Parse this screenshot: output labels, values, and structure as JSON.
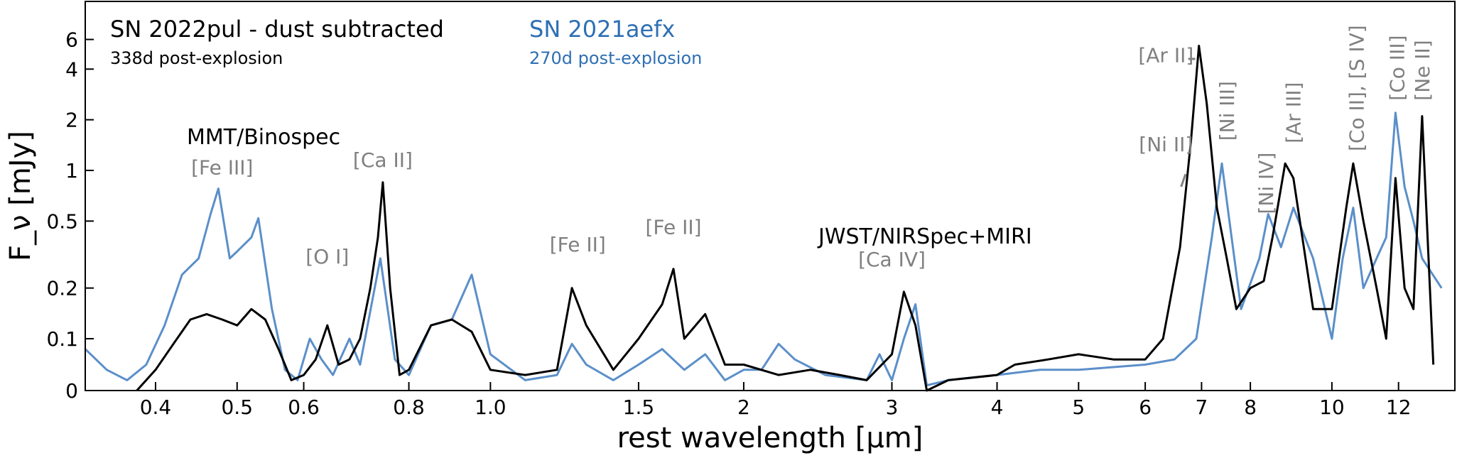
{
  "chart_data": {
    "type": "line",
    "xlabel": "rest wavelength [μm]",
    "ylabel": "F_ν [mJy]",
    "x_scale": "log",
    "xlim": [
      0.33,
      14.0
    ],
    "ylim": [
      0,
      6.3
    ],
    "x_ticks": [
      {
        "value": 0.4,
        "label": "0.4"
      },
      {
        "value": 0.5,
        "label": "0.5"
      },
      {
        "value": 0.6,
        "label": "0.6"
      },
      {
        "value": 0.8,
        "label": "0.8"
      },
      {
        "value": 1.0,
        "label": "1.0"
      },
      {
        "value": 1.5,
        "label": "1.5"
      },
      {
        "value": 2,
        "label": "2"
      },
      {
        "value": 3,
        "label": "3"
      },
      {
        "value": 4,
        "label": "4"
      },
      {
        "value": 5,
        "label": "5"
      },
      {
        "value": 6,
        "label": "6"
      },
      {
        "value": 7,
        "label": "7"
      },
      {
        "value": 8,
        "label": "8"
      },
      {
        "value": 10,
        "label": "10"
      },
      {
        "value": 12,
        "label": "12"
      }
    ],
    "y_ticks": [
      {
        "value": 0,
        "label": "0"
      },
      {
        "value": 0.1,
        "label": "0.1"
      },
      {
        "value": 0.2,
        "label": "0.2"
      },
      {
        "value": 0.5,
        "label": "0.5"
      },
      {
        "value": 1,
        "label": "1"
      },
      {
        "value": 2,
        "label": "2"
      },
      {
        "value": 4,
        "label": "4"
      },
      {
        "value": 6,
        "label": "6"
      }
    ],
    "series": [
      {
        "name": "SN 2022pul - dust subtracted",
        "subtitle": "338d post-explosion",
        "color": "#000000",
        "points": [
          [
            0.38,
            0.0
          ],
          [
            0.4,
            0.04
          ],
          [
            0.42,
            0.09
          ],
          [
            0.44,
            0.13
          ],
          [
            0.46,
            0.14
          ],
          [
            0.48,
            0.13
          ],
          [
            0.5,
            0.12
          ],
          [
            0.52,
            0.15
          ],
          [
            0.54,
            0.13
          ],
          [
            0.56,
            0.08
          ],
          [
            0.58,
            0.02
          ],
          [
            0.6,
            0.03
          ],
          [
            0.62,
            0.06
          ],
          [
            0.64,
            0.12
          ],
          [
            0.66,
            0.05
          ],
          [
            0.68,
            0.06
          ],
          [
            0.7,
            0.1
          ],
          [
            0.72,
            0.2
          ],
          [
            0.735,
            0.4
          ],
          [
            0.745,
            0.85
          ],
          [
            0.76,
            0.2
          ],
          [
            0.78,
            0.03
          ],
          [
            0.8,
            0.04
          ],
          [
            0.85,
            0.12
          ],
          [
            0.9,
            0.13
          ],
          [
            0.95,
            0.11
          ],
          [
            1.0,
            0.04
          ],
          [
            1.1,
            0.03
          ],
          [
            1.2,
            0.04
          ],
          [
            1.25,
            0.2
          ],
          [
            1.3,
            0.12
          ],
          [
            1.4,
            0.04
          ],
          [
            1.5,
            0.1
          ],
          [
            1.6,
            0.16
          ],
          [
            1.65,
            0.26
          ],
          [
            1.7,
            0.1
          ],
          [
            1.8,
            0.14
          ],
          [
            1.9,
            0.05
          ],
          [
            2.0,
            0.05
          ],
          [
            2.2,
            0.03
          ],
          [
            2.4,
            0.04
          ],
          [
            2.6,
            0.03
          ],
          [
            2.8,
            0.02
          ],
          [
            3.0,
            0.07
          ],
          [
            3.1,
            0.19
          ],
          [
            3.2,
            0.12
          ],
          [
            3.3,
            0.0
          ],
          [
            3.5,
            0.02
          ],
          [
            4.0,
            0.03
          ],
          [
            4.2,
            0.05
          ],
          [
            4.6,
            0.06
          ],
          [
            5.0,
            0.07
          ],
          [
            5.5,
            0.06
          ],
          [
            6.0,
            0.06
          ],
          [
            6.3,
            0.1
          ],
          [
            6.6,
            0.35
          ],
          [
            6.8,
            1.5
          ],
          [
            6.95,
            5.5
          ],
          [
            7.1,
            2.5
          ],
          [
            7.3,
            0.6
          ],
          [
            7.5,
            0.3
          ],
          [
            7.7,
            0.15
          ],
          [
            8.0,
            0.2
          ],
          [
            8.3,
            0.22
          ],
          [
            8.5,
            0.4
          ],
          [
            8.8,
            1.1
          ],
          [
            9.0,
            0.9
          ],
          [
            9.5,
            0.15
          ],
          [
            10.0,
            0.15
          ],
          [
            10.4,
            0.6
          ],
          [
            10.6,
            1.1
          ],
          [
            10.9,
            0.5
          ],
          [
            11.3,
            0.2
          ],
          [
            11.6,
            0.1
          ],
          [
            11.9,
            0.9
          ],
          [
            12.2,
            0.2
          ],
          [
            12.5,
            0.15
          ],
          [
            12.8,
            2.1
          ],
          [
            13.2,
            0.05
          ]
        ]
      },
      {
        "name": "SN 2021aefx",
        "subtitle": "270d post-explosion",
        "color": "#5b8fc9",
        "points": [
          [
            0.33,
            0.08
          ],
          [
            0.35,
            0.04
          ],
          [
            0.37,
            0.02
          ],
          [
            0.39,
            0.05
          ],
          [
            0.41,
            0.12
          ],
          [
            0.43,
            0.24
          ],
          [
            0.45,
            0.3
          ],
          [
            0.465,
            0.55
          ],
          [
            0.475,
            0.78
          ],
          [
            0.49,
            0.3
          ],
          [
            0.5,
            0.33
          ],
          [
            0.52,
            0.4
          ],
          [
            0.53,
            0.52
          ],
          [
            0.55,
            0.15
          ],
          [
            0.57,
            0.04
          ],
          [
            0.59,
            0.02
          ],
          [
            0.61,
            0.1
          ],
          [
            0.63,
            0.06
          ],
          [
            0.65,
            0.03
          ],
          [
            0.68,
            0.1
          ],
          [
            0.7,
            0.05
          ],
          [
            0.74,
            0.3
          ],
          [
            0.77,
            0.06
          ],
          [
            0.8,
            0.03
          ],
          [
            0.85,
            0.12
          ],
          [
            0.9,
            0.13
          ],
          [
            0.95,
            0.24
          ],
          [
            1.0,
            0.07
          ],
          [
            1.1,
            0.02
          ],
          [
            1.2,
            0.03
          ],
          [
            1.25,
            0.09
          ],
          [
            1.3,
            0.05
          ],
          [
            1.4,
            0.02
          ],
          [
            1.5,
            0.05
          ],
          [
            1.6,
            0.08
          ],
          [
            1.7,
            0.04
          ],
          [
            1.8,
            0.07
          ],
          [
            1.9,
            0.02
          ],
          [
            2.0,
            0.04
          ],
          [
            2.1,
            0.04
          ],
          [
            2.2,
            0.09
          ],
          [
            2.3,
            0.06
          ],
          [
            2.5,
            0.03
          ],
          [
            2.8,
            0.02
          ],
          [
            2.9,
            0.07
          ],
          [
            3.0,
            0.02
          ],
          [
            3.1,
            0.1
          ],
          [
            3.2,
            0.16
          ],
          [
            3.3,
            0.01
          ],
          [
            3.5,
            0.02
          ],
          [
            4.0,
            0.03
          ],
          [
            4.5,
            0.04
          ],
          [
            5.0,
            0.04
          ],
          [
            6.0,
            0.05
          ],
          [
            6.5,
            0.06
          ],
          [
            6.9,
            0.1
          ],
          [
            7.2,
            0.4
          ],
          [
            7.4,
            1.1
          ],
          [
            7.6,
            0.4
          ],
          [
            7.8,
            0.15
          ],
          [
            8.2,
            0.3
          ],
          [
            8.4,
            0.55
          ],
          [
            8.7,
            0.35
          ],
          [
            9.0,
            0.6
          ],
          [
            9.5,
            0.3
          ],
          [
            10.0,
            0.1
          ],
          [
            10.3,
            0.3
          ],
          [
            10.6,
            0.6
          ],
          [
            10.9,
            0.2
          ],
          [
            11.3,
            0.3
          ],
          [
            11.6,
            0.4
          ],
          [
            11.9,
            2.2
          ],
          [
            12.2,
            0.8
          ],
          [
            12.5,
            0.5
          ],
          [
            12.8,
            0.3
          ],
          [
            13.5,
            0.2
          ]
        ]
      }
    ],
    "legend": [
      {
        "title": "SN 2022pul - dust subtracted",
        "subtitle": "338d post-explosion",
        "color": "#000000",
        "placement": "top-left"
      },
      {
        "title": "SN 2021aefx",
        "subtitle": "270d post-explosion",
        "color": "#2e6fb3",
        "placement": "top-left"
      }
    ],
    "instrument_labels": [
      "MMT/Binospec",
      "JWST/NIRSpec+MIRI"
    ],
    "annotations": [
      {
        "text": "[Fe III]",
        "x": 0.48,
        "y": 0.95
      },
      {
        "text": "[O I]",
        "x": 0.64,
        "y": 0.28
      },
      {
        "text": "[Ca II]",
        "x": 0.745,
        "y": 1.05
      },
      {
        "text": "[Fe II]",
        "x": 1.27,
        "y": 0.33
      },
      {
        "text": "[Fe II]",
        "x": 1.65,
        "y": 0.42
      },
      {
        "text": "[Ca IV]",
        "x": 3.0,
        "y": 0.27
      },
      {
        "text": "[Ar II]",
        "x": 6.35,
        "y": 4.4
      },
      {
        "text": "[Ni II]",
        "x": 6.35,
        "y": 1.3
      },
      {
        "text": "[Ni III]",
        "x": 7.5,
        "y": 1.5,
        "rotate": true
      },
      {
        "text": "[Ni IV]",
        "x": 8.35,
        "y": 0.55,
        "rotate": true
      },
      {
        "text": "[Ar III]",
        "x": 9.0,
        "y": 1.45,
        "rotate": true
      },
      {
        "text": "[Co II], [S IV]",
        "x": 10.7,
        "y": 1.3,
        "rotate": true
      },
      {
        "text": "[Co III]",
        "x": 11.95,
        "y": 2.6,
        "rotate": true
      },
      {
        "text": "[Ne II]",
        "x": 12.8,
        "y": 2.6,
        "rotate": true
      }
    ]
  }
}
